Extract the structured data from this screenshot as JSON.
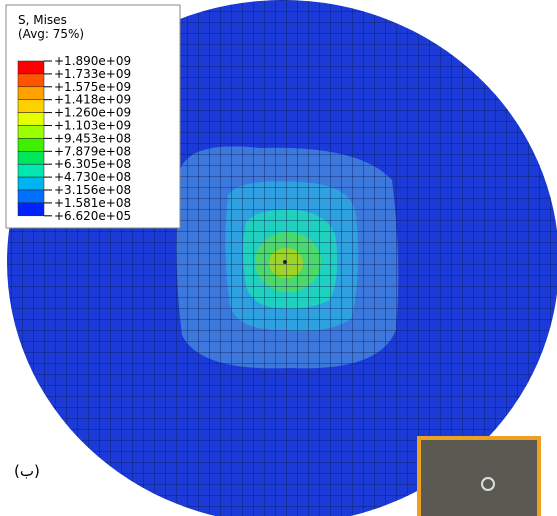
{
  "legend": {
    "title": [
      "S, Mises",
      "(Avg: 75%)"
    ],
    "labels": [
      "+1.890e+09",
      "+1.733e+09",
      "+1.575e+09",
      "+1.418e+09",
      "+1.260e+09",
      "+1.103e+09",
      "+9.453e+08",
      "+7.879e+08",
      "+6.305e+08",
      "+4.730e+08",
      "+3.156e+08",
      "+1.581e+08",
      "+6.620e+05"
    ],
    "colors": [
      "#ff0000",
      "#ff5500",
      "#ffa200",
      "#ffd000",
      "#e6ff00",
      "#9cff00",
      "#3cf000",
      "#00e85a",
      "#00e8b0",
      "#00b4f0",
      "#0070ff",
      "#0022ff"
    ]
  },
  "caption": "(ب)"
}
